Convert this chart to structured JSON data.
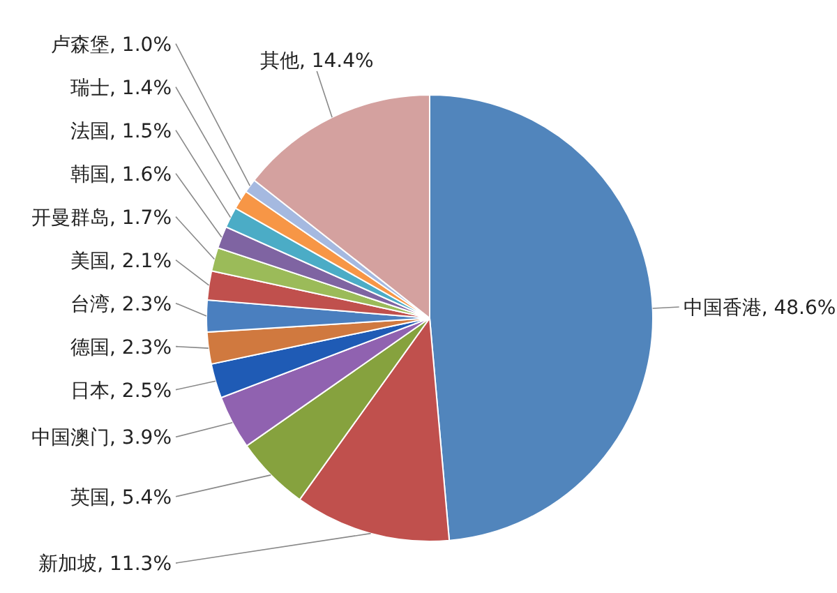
{
  "chart_data": {
    "type": "pie",
    "value_labels": [
      ", 48.6%",
      ", 11.3%",
      ", 5.4%",
      ", 3.9%",
      ", 2.5%",
      ", 2.3%",
      ", 2.3%",
      ", 2.1%",
      ", 1.7%",
      ", 1.6%",
      ", 1.5%",
      ", 1.4%",
      ", 1.0%",
      ", 14.4%"
    ],
    "categories": [
      "中国香港",
      "新加坡",
      "英国",
      "中国澳门",
      "日本",
      "德国",
      "台湾",
      "美国",
      "开曼群岛",
      "韩国",
      "法国",
      "瑞士",
      "卢森堡",
      "其他"
    ],
    "values": [
      48.6,
      11.3,
      5.4,
      3.9,
      2.5,
      2.3,
      2.3,
      2.1,
      1.7,
      1.6,
      1.5,
      1.4,
      1.0,
      14.4
    ],
    "colors": [
      "#5185bc",
      "#c0504d",
      "#86a23e",
      "#9062b0",
      "#1f5bb5",
      "#d0793f",
      "#4a7fbf",
      "#c0504d",
      "#9bbb59",
      "#7f64a2",
      "#4bacc6",
      "#f79646",
      "#a5b9e0",
      "#d4a19f"
    ]
  }
}
